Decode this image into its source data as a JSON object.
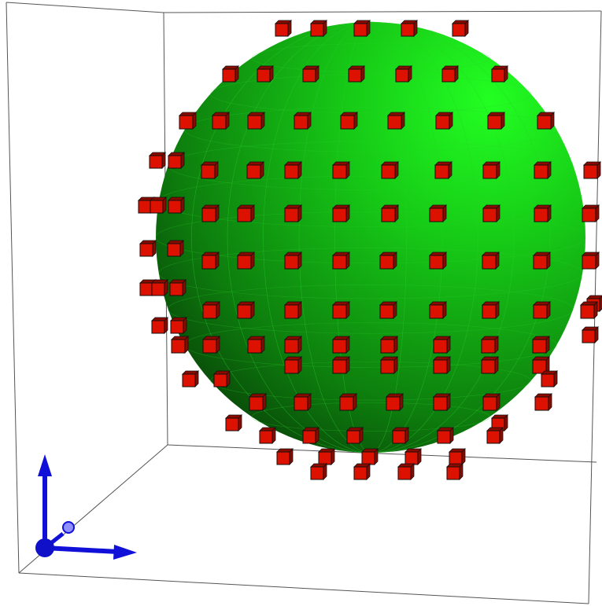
{
  "viewer": {
    "background_color": "#ffffff",
    "bounding_box_color": "#555555"
  },
  "sphere": {
    "highlight_color": "#22ff22",
    "mid_color": "#18b818",
    "shadow_color": "#0a4a0a",
    "mesh_line_color": "#2fd22f"
  },
  "markers": {
    "face_color": "#dd1100",
    "side_color": "#8a0a00",
    "edge_color": "#111111"
  },
  "axes_triad": {
    "color": "#1010d8",
    "origin_icon": "sphere-origin-icon",
    "x_icon": "arrow-right-icon",
    "y_icon": "arrow-up-icon",
    "z_icon": "arrow-depth-icon"
  }
}
